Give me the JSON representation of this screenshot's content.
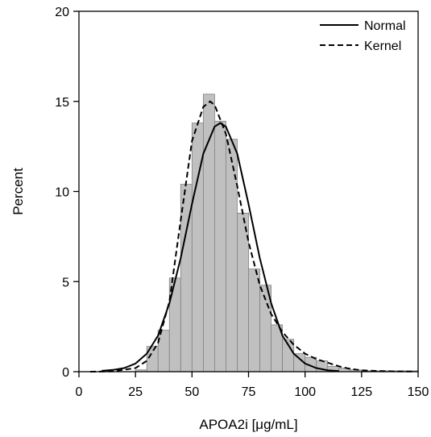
{
  "chart_data": {
    "type": "bar",
    "title": "",
    "xlabel": "APOA2i [μg/mL]",
    "ylabel": "Percent",
    "xlim": [
      0,
      150
    ],
    "ylim": [
      0,
      20
    ],
    "xticks": [
      0,
      25,
      50,
      75,
      100,
      125,
      150
    ],
    "yticks": [
      0,
      5,
      10,
      15,
      20
    ],
    "grid": false,
    "legend_position": "top-right",
    "histogram": {
      "bin_width": 5,
      "bins": [
        {
          "x0": 25,
          "x1": 30,
          "value": 0.1
        },
        {
          "x0": 30,
          "x1": 35,
          "value": 1.4
        },
        {
          "x0": 35,
          "x1": 40,
          "value": 2.3
        },
        {
          "x0": 40,
          "x1": 45,
          "value": 5.2
        },
        {
          "x0": 45,
          "x1": 50,
          "value": 10.4
        },
        {
          "x0": 50,
          "x1": 55,
          "value": 13.8
        },
        {
          "x0": 55,
          "x1": 60,
          "value": 15.4
        },
        {
          "x0": 60,
          "x1": 65,
          "value": 13.9
        },
        {
          "x0": 65,
          "x1": 70,
          "value": 12.9
        },
        {
          "x0": 70,
          "x1": 75,
          "value": 8.8
        },
        {
          "x0": 75,
          "x1": 80,
          "value": 5.7
        },
        {
          "x0": 80,
          "x1": 85,
          "value": 4.8
        },
        {
          "x0": 85,
          "x1": 90,
          "value": 2.6
        },
        {
          "x0": 90,
          "x1": 95,
          "value": 1.8
        },
        {
          "x0": 95,
          "x1": 100,
          "value": 1.0
        },
        {
          "x0": 100,
          "x1": 105,
          "value": 0.8
        },
        {
          "x0": 105,
          "x1": 110,
          "value": 0.6
        },
        {
          "x0": 110,
          "x1": 115,
          "value": 0.3
        },
        {
          "x0": 115,
          "x1": 120,
          "value": 0.2
        },
        {
          "x0": 120,
          "x1": 125,
          "value": 0.1
        },
        {
          "x0": 125,
          "x1": 130,
          "value": 0.05
        },
        {
          "x0": 130,
          "x1": 135,
          "value": 0.05
        },
        {
          "x0": 135,
          "x1": 140,
          "value": 0.05
        },
        {
          "x0": 140,
          "x1": 145,
          "value": 0.05
        },
        {
          "x0": 145,
          "x1": 150,
          "value": 0.05
        }
      ],
      "fill_color": "#c0c0c0",
      "edge_color": "#808080"
    },
    "series": [
      {
        "name": "Normal",
        "style": "solid",
        "color": "#000000",
        "x": [
          10,
          15,
          20,
          25,
          30,
          35,
          40,
          45,
          50,
          55,
          60,
          62.5,
          65,
          70,
          75,
          80,
          85,
          90,
          95,
          100,
          105,
          110,
          115
        ],
        "y": [
          0.05,
          0.1,
          0.2,
          0.45,
          1.0,
          2.0,
          3.8,
          6.3,
          9.3,
          12.1,
          13.6,
          13.8,
          13.6,
          12.1,
          9.3,
          6.3,
          3.8,
          2.0,
          1.0,
          0.45,
          0.2,
          0.08,
          0.03
        ]
      },
      {
        "name": "Kernel",
        "style": "dashed",
        "color": "#000000",
        "x": [
          5,
          15,
          25,
          30,
          35,
          40,
          45,
          50,
          55,
          58,
          60,
          65,
          70,
          75,
          80,
          85,
          90,
          95,
          100,
          105,
          110,
          115,
          120,
          125,
          130,
          135,
          140,
          148
        ],
        "y": [
          0.0,
          0.02,
          0.2,
          0.6,
          1.6,
          3.9,
          8.4,
          12.8,
          14.7,
          15.0,
          14.8,
          13.2,
          10.3,
          7.2,
          4.8,
          3.2,
          2.2,
          1.5,
          1.0,
          0.7,
          0.5,
          0.3,
          0.15,
          0.08,
          0.05,
          0.03,
          0.02,
          0.01
        ]
      }
    ]
  }
}
